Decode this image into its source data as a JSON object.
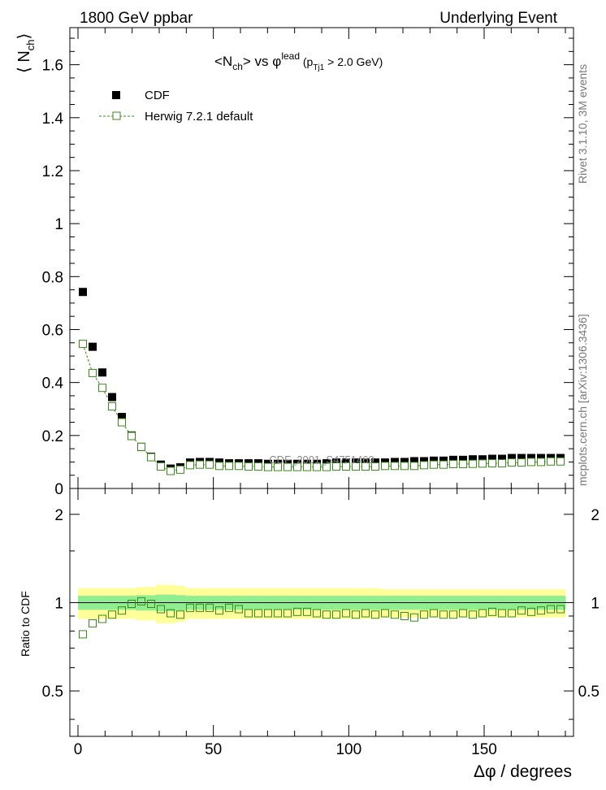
{
  "header": {
    "left": "1800 GeV ppbar",
    "right": "Underlying Event"
  },
  "side_text": {
    "top": "Rivet 3.1.10,  3M events",
    "bottom": "mcplots.cern.ch [arXiv:1306.3436]"
  },
  "watermark": "CDF_2001_S4751469",
  "colors": {
    "data_marker": "#000000",
    "mc_line": "#3a8a1a",
    "band_inner": "#90ee90",
    "band_outer": "#ffff99"
  },
  "chart_data": [
    {
      "type": "scatter",
      "panel": "main",
      "title": "<N_ch> vs φ^lead (p_Tj1 > 2.0 GeV)",
      "title_parts": {
        "pre": "<N",
        "sub1": "ch",
        "mid": "> vs φ",
        "sup": "lead",
        "paren_open": " (p",
        "sub2": "Tj1",
        "post": " > 2.0 GeV)"
      },
      "ylabel": "⟨ N_ch ⟩",
      "ylabel_parts": {
        "pre": "⟨ N",
        "sub": "ch",
        "post": "⟩"
      },
      "xlim": [
        -3,
        183
      ],
      "ylim": [
        0,
        1.74
      ],
      "yticks": [
        0,
        0.2,
        0.4,
        0.6,
        0.8,
        1,
        1.2,
        1.4,
        1.6
      ],
      "ytick_labels": [
        "0",
        "0.2",
        "0.4",
        "0.6",
        "0.8",
        "1",
        "1.2",
        "1.4",
        "1.6"
      ],
      "legend": {
        "position": "top-left",
        "entries": [
          "CDF",
          "Herwig 7.2.1 default"
        ]
      },
      "x": [
        1.8,
        5.4,
        9.0,
        12.6,
        16.2,
        19.8,
        23.4,
        27.0,
        30.6,
        34.2,
        37.8,
        41.4,
        45.0,
        48.6,
        52.2,
        55.8,
        59.4,
        63.0,
        66.6,
        70.2,
        73.8,
        77.4,
        81.0,
        84.6,
        88.2,
        91.8,
        95.4,
        99.0,
        102.6,
        106.2,
        109.8,
        113.4,
        117.0,
        120.6,
        124.2,
        127.8,
        131.4,
        135.0,
        138.6,
        142.2,
        145.8,
        149.4,
        153.0,
        156.6,
        160.2,
        163.8,
        167.4,
        171.0,
        174.6,
        178.2
      ],
      "series": [
        {
          "name": "CDF",
          "marker": "filled-square",
          "values": [
            0.742,
            0.535,
            0.438,
            0.345,
            0.27,
            0.2,
            0.157,
            0.12,
            0.09,
            0.075,
            0.08,
            0.098,
            0.1,
            0.1,
            0.098,
            0.095,
            0.095,
            0.095,
            0.095,
            0.093,
            0.093,
            0.093,
            0.093,
            0.093,
            0.093,
            0.095,
            0.098,
            0.098,
            0.098,
            0.098,
            0.098,
            0.098,
            0.1,
            0.1,
            0.103,
            0.103,
            0.105,
            0.105,
            0.108,
            0.108,
            0.11,
            0.11,
            0.112,
            0.112,
            0.115,
            0.115,
            0.115,
            0.115,
            0.115,
            0.115
          ]
        },
        {
          "name": "Herwig 7.2.1 default",
          "marker": "open-square",
          "line": "dashed",
          "values": [
            0.546,
            0.436,
            0.38,
            0.31,
            0.25,
            0.198,
            0.157,
            0.118,
            0.083,
            0.066,
            0.071,
            0.088,
            0.09,
            0.09,
            0.085,
            0.085,
            0.085,
            0.083,
            0.083,
            0.081,
            0.081,
            0.081,
            0.081,
            0.081,
            0.081,
            0.081,
            0.083,
            0.083,
            0.083,
            0.083,
            0.083,
            0.085,
            0.085,
            0.085,
            0.085,
            0.088,
            0.09,
            0.09,
            0.092,
            0.092,
            0.093,
            0.094,
            0.095,
            0.095,
            0.098,
            0.098,
            0.1,
            0.1,
            0.102,
            0.102
          ]
        }
      ]
    },
    {
      "type": "scatter",
      "panel": "ratio",
      "ylabel": "Ratio to CDF",
      "xlabel": "Δφ / degrees",
      "xlim": [
        -3,
        183
      ],
      "ylim": [
        0.35,
        2.45
      ],
      "yscale": "log",
      "yticks": [
        0.5,
        1,
        2
      ],
      "ytick_labels": [
        "0.5",
        "1",
        "2"
      ],
      "xticks": [
        0,
        50,
        100,
        150
      ],
      "xtick_labels": [
        "0",
        "50",
        "100",
        "150"
      ],
      "band_inner_halfwidth": [
        0.055,
        0.055,
        0.055,
        0.055,
        0.055,
        0.055,
        0.06,
        0.06,
        0.065,
        0.065,
        0.06,
        0.055,
        0.055,
        0.055,
        0.055,
        0.055,
        0.055,
        0.055,
        0.055,
        0.055,
        0.055,
        0.055,
        0.055,
        0.055,
        0.055,
        0.055,
        0.055,
        0.055,
        0.055,
        0.055,
        0.055,
        0.055,
        0.055,
        0.055,
        0.055,
        0.055,
        0.055,
        0.055,
        0.055,
        0.055,
        0.055,
        0.055,
        0.055,
        0.055,
        0.055,
        0.055,
        0.055,
        0.055,
        0.055,
        0.055
      ],
      "band_outer_halfwidth": [
        0.12,
        0.12,
        0.12,
        0.12,
        0.12,
        0.12,
        0.13,
        0.13,
        0.15,
        0.15,
        0.14,
        0.12,
        0.12,
        0.12,
        0.12,
        0.12,
        0.12,
        0.12,
        0.12,
        0.12,
        0.12,
        0.12,
        0.12,
        0.12,
        0.12,
        0.12,
        0.12,
        0.12,
        0.12,
        0.12,
        0.12,
        0.11,
        0.11,
        0.11,
        0.11,
        0.11,
        0.11,
        0.11,
        0.11,
        0.11,
        0.11,
        0.11,
        0.11,
        0.11,
        0.11,
        0.11,
        0.11,
        0.11,
        0.11,
        0.11
      ],
      "series": [
        {
          "name": "Herwig 7.2.1 default / CDF",
          "marker": "open-square",
          "values": [
            0.78,
            0.85,
            0.88,
            0.91,
            0.94,
            0.99,
            1.01,
            0.99,
            0.95,
            0.92,
            0.91,
            0.96,
            0.96,
            0.96,
            0.94,
            0.96,
            0.95,
            0.92,
            0.92,
            0.92,
            0.92,
            0.92,
            0.93,
            0.93,
            0.92,
            0.91,
            0.91,
            0.92,
            0.91,
            0.92,
            0.91,
            0.92,
            0.91,
            0.9,
            0.89,
            0.91,
            0.92,
            0.91,
            0.91,
            0.92,
            0.91,
            0.92,
            0.93,
            0.92,
            0.92,
            0.94,
            0.93,
            0.94,
            0.95,
            0.95
          ]
        }
      ]
    }
  ]
}
